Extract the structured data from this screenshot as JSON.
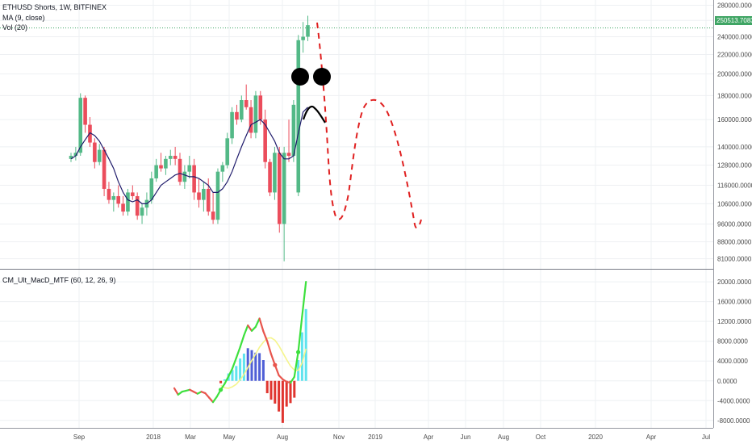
{
  "legend": {
    "title": "ETHUSD Shorts, 1W, BITFINEX",
    "ma": "MA (9, close)",
    "vol": "Vol (20)",
    "indicator": "CM_Ult_MacD_MTF (60, 12, 26, 9)"
  },
  "last_price": "250513.7083",
  "colors": {
    "up": "#53b987",
    "down": "#eb4d5c",
    "ma": "#1f1b6b",
    "forecast": "#e02020",
    "macd_up": "#3de03d",
    "macd_down": "#e8554d",
    "signal": "#f5f58c",
    "hist_pos": "#5ee3ee",
    "hist_pos_weak": "#4f5fd6",
    "hist_neg": "#e0352f"
  },
  "chart_data": [
    {
      "type": "candlestick",
      "ylabels": [
        "280000.0000",
        "260000.0000",
        "240000.0000",
        "220000.0000",
        "200000.0000",
        "180000.0000",
        "160000.0000",
        "140000.0000",
        "128000.0000",
        "116000.0000",
        "106000.0000",
        "96000.0000",
        "88000.0000",
        "81000.0000"
      ],
      "ylim": [
        78000,
        285000
      ],
      "log_scale": true,
      "xlabels": [
        "Sep",
        "2018",
        "Mar",
        "May",
        "Aug",
        "Nov",
        "2019",
        "Apr",
        "Jun",
        "Aug",
        "Oct",
        "2020",
        "Apr",
        "Jul"
      ],
      "candles": [
        [
          132000,
          136000,
          130000,
          134000
        ],
        [
          134000,
          140000,
          131000,
          136000
        ],
        [
          136000,
          182000,
          134000,
          178000
        ],
        [
          178000,
          180000,
          150000,
          156000
        ],
        [
          156000,
          162000,
          140000,
          143000
        ],
        [
          143000,
          146000,
          126000,
          130000
        ],
        [
          130000,
          142000,
          128000,
          138000
        ],
        [
          138000,
          140000,
          110000,
          114000
        ],
        [
          114000,
          118000,
          106000,
          108000
        ],
        [
          108000,
          112000,
          102000,
          110000
        ],
        [
          110000,
          116000,
          104000,
          106000
        ],
        [
          106000,
          110000,
          100000,
          102000
        ],
        [
          102000,
          114000,
          100000,
          112000
        ],
        [
          112000,
          116000,
          108000,
          110000
        ],
        [
          110000,
          112000,
          98000,
          100000
        ],
        [
          100000,
          106000,
          96000,
          104000
        ],
        [
          104000,
          112000,
          100000,
          108000
        ],
        [
          108000,
          124000,
          106000,
          120000
        ],
        [
          120000,
          132000,
          118000,
          128000
        ],
        [
          128000,
          136000,
          124000,
          126000
        ],
        [
          126000,
          134000,
          122000,
          132000
        ],
        [
          132000,
          138000,
          128000,
          134000
        ],
        [
          134000,
          140000,
          128000,
          132000
        ],
        [
          132000,
          136000,
          116000,
          118000
        ],
        [
          118000,
          128000,
          114000,
          124000
        ],
        [
          124000,
          134000,
          120000,
          128000
        ],
        [
          128000,
          132000,
          108000,
          112000
        ],
        [
          112000,
          120000,
          104000,
          108000
        ],
        [
          108000,
          118000,
          102000,
          114000
        ],
        [
          114000,
          120000,
          100000,
          102000
        ],
        [
          102000,
          112000,
          96000,
          98000
        ],
        [
          98000,
          126000,
          96000,
          124000
        ],
        [
          124000,
          130000,
          118000,
          128000
        ],
        [
          128000,
          150000,
          126000,
          146000
        ],
        [
          146000,
          170000,
          142000,
          166000
        ],
        [
          166000,
          172000,
          156000,
          160000
        ],
        [
          160000,
          180000,
          158000,
          176000
        ],
        [
          176000,
          190000,
          168000,
          170000
        ],
        [
          170000,
          176000,
          146000,
          150000
        ],
        [
          150000,
          184000,
          146000,
          180000
        ],
        [
          180000,
          184000,
          156000,
          160000
        ],
        [
          160000,
          168000,
          126000,
          130000
        ],
        [
          130000,
          132000,
          110000,
          112000
        ],
        [
          112000,
          140000,
          108000,
          136000
        ],
        [
          136000,
          140000,
          92000,
          96000
        ],
        [
          96000,
          140000,
          80000,
          136000
        ],
        [
          136000,
          160000,
          130000,
          134000
        ],
        [
          134000,
          176000,
          130000,
          172000
        ],
        [
          112000,
          242000,
          110000,
          236000
        ],
        [
          236000,
          258000,
          222000,
          240000
        ],
        [
          240000,
          266000,
          235000,
          254000
        ]
      ],
      "ma9": [
        132000,
        134000,
        140000,
        145000,
        150000,
        148000,
        144000,
        138000,
        132000,
        126000,
        118000,
        112000,
        108000,
        107000,
        108000,
        106000,
        106000,
        108000,
        112000,
        116000,
        118000,
        120000,
        122000,
        123000,
        122000,
        121000,
        121000,
        120000,
        118000,
        116000,
        112000,
        112000,
        114000,
        118000,
        124000,
        132000,
        140000,
        148000,
        156000,
        158000,
        160000,
        156000,
        150000,
        144000,
        136000,
        132000,
        132000,
        134000,
        150000,
        166000,
        170000
      ]
    },
    {
      "type": "macd",
      "ylabels": [
        "20000.0000",
        "16000.0000",
        "12000.0000",
        "8000.0000",
        "4000.0000",
        "0.0000",
        "-4000.0000",
        "-8000.0000"
      ],
      "ylim": [
        -9500,
        21000
      ],
      "macd_line": [
        -1500,
        -2800,
        -2200,
        -2000,
        -1800,
        -2200,
        -2600,
        -2200,
        -2500,
        -3400,
        -4300,
        -3200,
        -1800,
        -600,
        900,
        2500,
        4600,
        6800,
        9200,
        11200,
        10100,
        10900,
        12600,
        10000,
        8000,
        5400,
        3200,
        1100,
        300,
        -200,
        -400,
        800,
        5800,
        13000,
        20000
      ],
      "signal_line": [
        null,
        null,
        null,
        null,
        null,
        null,
        null,
        null,
        null,
        null,
        null,
        null,
        -900,
        -1400,
        -1500,
        -1200,
        -700,
        200,
        1300,
        2700,
        4100,
        5400,
        6800,
        7800,
        8600,
        8700,
        8200,
        7100,
        5700,
        4300,
        3000,
        2200,
        2100,
        3600,
        6500
      ],
      "histogram": [
        null,
        null,
        null,
        null,
        null,
        null,
        null,
        null,
        null,
        null,
        null,
        null,
        -500,
        300,
        1500,
        2200,
        3000,
        4500,
        5500,
        6600,
        6200,
        5700,
        5600,
        4200,
        -2500,
        -3800,
        -4600,
        -6200,
        -8500,
        -5200,
        -4500,
        -3400,
        4200,
        9800,
        14500
      ]
    }
  ]
}
